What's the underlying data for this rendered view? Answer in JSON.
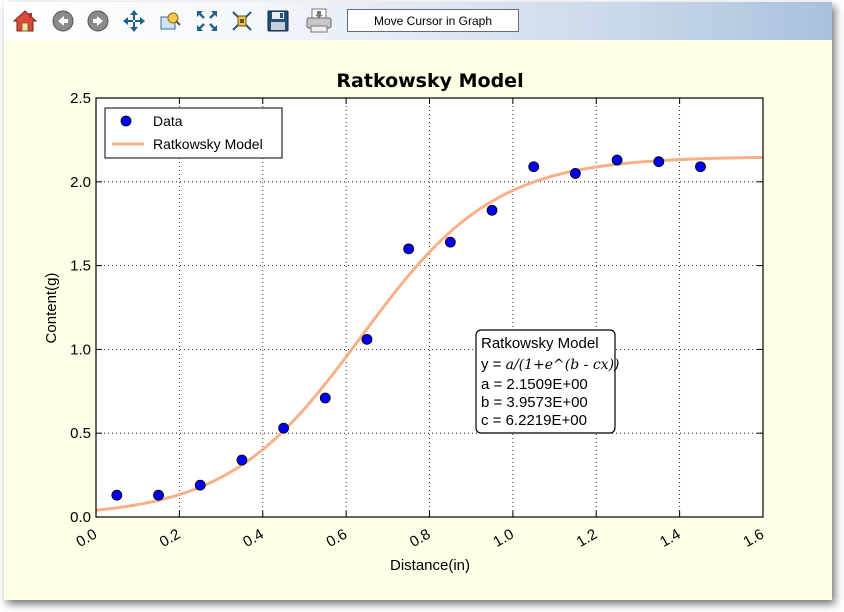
{
  "toolbar": {
    "buttons": [
      {
        "name": "home-icon",
        "label": "Home"
      },
      {
        "name": "back-icon",
        "label": "Back"
      },
      {
        "name": "forward-icon",
        "label": "Forward"
      },
      {
        "name": "pan-icon",
        "label": "Pan"
      },
      {
        "name": "zoom-icon",
        "label": "Zoom"
      },
      {
        "name": "fit-icon",
        "label": "Fit"
      },
      {
        "name": "subplots-icon",
        "label": "Subplots"
      },
      {
        "name": "save-icon",
        "label": "Save"
      },
      {
        "name": "print-icon",
        "label": "Print"
      }
    ],
    "status_text": "Move Cursor in Graph"
  },
  "chart_data": {
    "type": "scatter",
    "title": "Ratkowsky Model",
    "xlabel": "Distance(in)",
    "ylabel": "Content(g)",
    "xlim": [
      0.0,
      1.6
    ],
    "ylim": [
      0.0,
      2.5
    ],
    "grid": true,
    "xticks": [
      "0.0",
      "0.2",
      "0.4",
      "0.6",
      "0.8",
      "1.0",
      "1.2",
      "1.4",
      "1.6"
    ],
    "yticks": [
      "0.0",
      "0.5",
      "1.0",
      "1.5",
      "2.0",
      "2.5"
    ],
    "legend": {
      "placement": "top-left",
      "entries": [
        "Data",
        "Ratkowsky Model"
      ]
    },
    "series": [
      {
        "name": "Data",
        "kind": "points",
        "color": "#0000ee",
        "x": [
          0.05,
          0.15,
          0.25,
          0.35,
          0.45,
          0.55,
          0.65,
          0.75,
          0.85,
          0.95,
          1.05,
          1.15,
          1.25,
          1.35,
          1.45
        ],
        "y": [
          0.13,
          0.13,
          0.19,
          0.34,
          0.53,
          0.71,
          1.06,
          1.6,
          1.64,
          1.83,
          2.09,
          2.05,
          2.13,
          2.12,
          2.09
        ]
      },
      {
        "name": "Ratkowsky Model",
        "kind": "line",
        "color": "#f7b08a",
        "model": {
          "a": 2.1509,
          "b": 3.9573,
          "c": 6.2219
        }
      }
    ],
    "annotation": {
      "placement": "center-right",
      "lines": [
        "Ratkowsky Model",
        "y = ",
        "a = 2.1509E+00",
        "b = 3.9573E+00",
        "c = 6.2219E+00"
      ],
      "formula": "a/(1+e^(b - cx))"
    }
  }
}
